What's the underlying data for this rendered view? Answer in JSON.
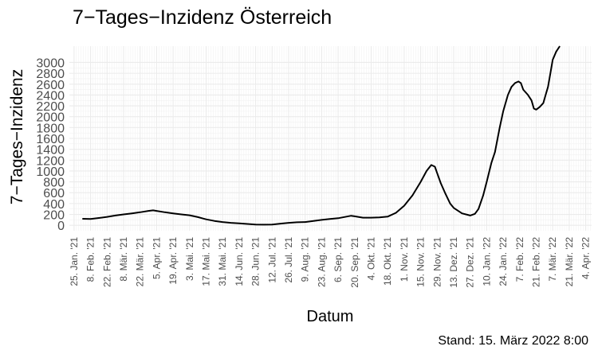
{
  "chart_data": {
    "type": "line",
    "title": "7−Tages−Inzidenz Österreich",
    "xlabel": "Datum",
    "ylabel": "7−Tages−Inzidenz",
    "caption": "Stand: 15. März 2022 8:00",
    "grid": true,
    "legend": "none",
    "line_color": "#000000",
    "ylim": [
      -100,
      3300
    ],
    "yticks": [
      0,
      200,
      400,
      600,
      800,
      1000,
      1200,
      1400,
      1600,
      1800,
      2000,
      2200,
      2400,
      2600,
      2800,
      3000
    ],
    "xlim": [
      "2021-01-21",
      "2022-04-09"
    ],
    "xticks": [
      {
        "date": "2021-01-25",
        "label": "25. Jan. '21"
      },
      {
        "date": "2021-02-08",
        "label": "8. Feb. '21"
      },
      {
        "date": "2021-02-22",
        "label": "22. Feb. '21"
      },
      {
        "date": "2021-03-08",
        "label": "8. Mär. '21"
      },
      {
        "date": "2021-03-22",
        "label": "22. Mär. '21"
      },
      {
        "date": "2021-04-05",
        "label": "5. Apr. '21"
      },
      {
        "date": "2021-04-19",
        "label": "19. Apr. '21"
      },
      {
        "date": "2021-05-03",
        "label": "3. Mai. '21"
      },
      {
        "date": "2021-05-17",
        "label": "17. Mai. '21"
      },
      {
        "date": "2021-05-31",
        "label": "31. Mai. '21"
      },
      {
        "date": "2021-06-14",
        "label": "14. Jun. '21"
      },
      {
        "date": "2021-06-28",
        "label": "28. Jun. '21"
      },
      {
        "date": "2021-07-12",
        "label": "12. Jul. '21"
      },
      {
        "date": "2021-07-26",
        "label": "26. Jul. '21"
      },
      {
        "date": "2021-08-09",
        "label": "9. Aug. '21"
      },
      {
        "date": "2021-08-23",
        "label": "23. Aug. '21"
      },
      {
        "date": "2021-09-06",
        "label": "6. Sep. '21"
      },
      {
        "date": "2021-09-20",
        "label": "20. Sep. '21"
      },
      {
        "date": "2021-10-04",
        "label": "4. Okt. '21"
      },
      {
        "date": "2021-10-18",
        "label": "18. Okt. '21"
      },
      {
        "date": "2021-11-01",
        "label": "1. Nov. '21"
      },
      {
        "date": "2021-11-15",
        "label": "15. Nov. '21"
      },
      {
        "date": "2021-11-29",
        "label": "29. Nov. '21"
      },
      {
        "date": "2021-12-13",
        "label": "13. Dez. '21"
      },
      {
        "date": "2021-12-27",
        "label": "27. Dez. '21"
      },
      {
        "date": "2022-01-10",
        "label": "10. Jan. '22"
      },
      {
        "date": "2022-01-24",
        "label": "24. Jan. '22"
      },
      {
        "date": "2022-02-07",
        "label": "7. Feb. '22"
      },
      {
        "date": "2022-02-21",
        "label": "21. Feb. '22"
      },
      {
        "date": "2022-03-07",
        "label": "7. Mär. '22"
      },
      {
        "date": "2022-03-21",
        "label": "21. Mär. '22"
      },
      {
        "date": "2022-04-04",
        "label": "4. Apr. '22"
      }
    ],
    "series": [
      {
        "points": [
          [
            "2021-02-01",
            120
          ],
          [
            "2021-02-08",
            115
          ],
          [
            "2021-02-15",
            135
          ],
          [
            "2021-02-22",
            155
          ],
          [
            "2021-03-01",
            180
          ],
          [
            "2021-03-08",
            200
          ],
          [
            "2021-03-15",
            220
          ],
          [
            "2021-03-22",
            240
          ],
          [
            "2021-03-29",
            265
          ],
          [
            "2021-04-02",
            275
          ],
          [
            "2021-04-05",
            265
          ],
          [
            "2021-04-12",
            240
          ],
          [
            "2021-04-19",
            220
          ],
          [
            "2021-04-26",
            200
          ],
          [
            "2021-05-03",
            185
          ],
          [
            "2021-05-10",
            150
          ],
          [
            "2021-05-17",
            110
          ],
          [
            "2021-05-24",
            80
          ],
          [
            "2021-05-31",
            60
          ],
          [
            "2021-06-07",
            45
          ],
          [
            "2021-06-14",
            35
          ],
          [
            "2021-06-21",
            25
          ],
          [
            "2021-06-28",
            15
          ],
          [
            "2021-07-05",
            12
          ],
          [
            "2021-07-12",
            15
          ],
          [
            "2021-07-19",
            30
          ],
          [
            "2021-07-26",
            45
          ],
          [
            "2021-08-02",
            55
          ],
          [
            "2021-08-09",
            60
          ],
          [
            "2021-08-16",
            80
          ],
          [
            "2021-08-23",
            100
          ],
          [
            "2021-08-30",
            115
          ],
          [
            "2021-09-06",
            130
          ],
          [
            "2021-09-13",
            160
          ],
          [
            "2021-09-17",
            175
          ],
          [
            "2021-09-20",
            165
          ],
          [
            "2021-09-27",
            140
          ],
          [
            "2021-10-04",
            140
          ],
          [
            "2021-10-11",
            145
          ],
          [
            "2021-10-18",
            160
          ],
          [
            "2021-10-25",
            230
          ],
          [
            "2021-11-01",
            360
          ],
          [
            "2021-11-08",
            550
          ],
          [
            "2021-11-15",
            800
          ],
          [
            "2021-11-20",
            1000
          ],
          [
            "2021-11-24",
            1110
          ],
          [
            "2021-11-27",
            1080
          ],
          [
            "2021-11-29",
            960
          ],
          [
            "2021-12-02",
            780
          ],
          [
            "2021-12-06",
            580
          ],
          [
            "2021-12-10",
            400
          ],
          [
            "2021-12-13",
            320
          ],
          [
            "2021-12-20",
            220
          ],
          [
            "2021-12-27",
            180
          ],
          [
            "2021-12-31",
            210
          ],
          [
            "2022-01-03",
            300
          ],
          [
            "2022-01-07",
            550
          ],
          [
            "2022-01-10",
            800
          ],
          [
            "2022-01-14",
            1150
          ],
          [
            "2022-01-17",
            1350
          ],
          [
            "2022-01-21",
            1800
          ],
          [
            "2022-01-24",
            2100
          ],
          [
            "2022-01-28",
            2400
          ],
          [
            "2022-01-31",
            2550
          ],
          [
            "2022-02-03",
            2620
          ],
          [
            "2022-02-06",
            2650
          ],
          [
            "2022-02-08",
            2620
          ],
          [
            "2022-02-10",
            2500
          ],
          [
            "2022-02-14",
            2400
          ],
          [
            "2022-02-17",
            2300
          ],
          [
            "2022-02-19",
            2150
          ],
          [
            "2022-02-21",
            2130
          ],
          [
            "2022-02-24",
            2180
          ],
          [
            "2022-02-27",
            2250
          ],
          [
            "2022-03-01",
            2400
          ],
          [
            "2022-03-03",
            2550
          ],
          [
            "2022-03-05",
            2800
          ],
          [
            "2022-03-07",
            3050
          ],
          [
            "2022-03-10",
            3200
          ],
          [
            "2022-03-13",
            3300
          ]
        ]
      }
    ]
  }
}
